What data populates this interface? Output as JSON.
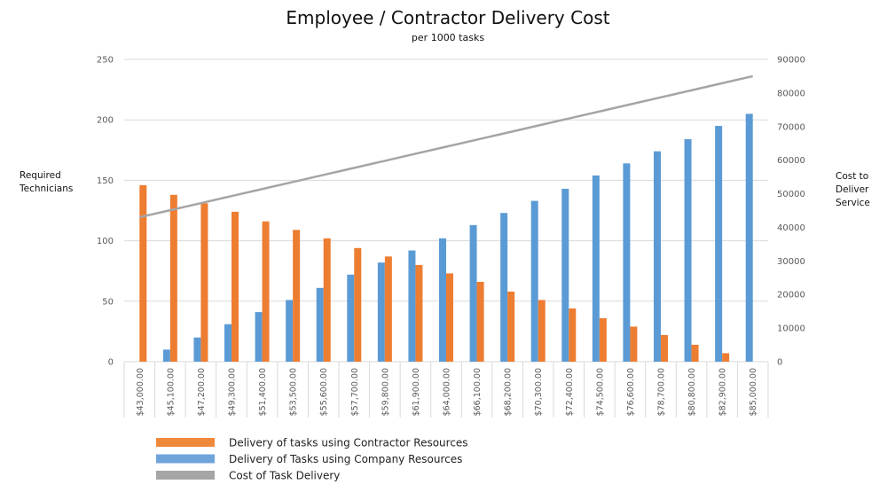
{
  "chart_data": {
    "type": "bar",
    "title": "Employee / Contractor Delivery Cost",
    "subtitle": "per 1000 tasks",
    "ylabel": [
      "Required",
      "Technicians"
    ],
    "y2label": [
      "Cost to",
      "Deliver",
      "Service"
    ],
    "ylim": [
      0,
      250
    ],
    "yticks": [
      0,
      50,
      100,
      150,
      200,
      250
    ],
    "y2lim": [
      0,
      90000
    ],
    "y2ticks": [
      0,
      10000,
      20000,
      30000,
      40000,
      50000,
      60000,
      70000,
      80000,
      90000
    ],
    "grid": true,
    "legend_position": "bottom-left",
    "categories": [
      "$43,000.00",
      "$45,100.00",
      "$47,200.00",
      "$49,300.00",
      "$51,400.00",
      "$53,500.00",
      "$55,600.00",
      "$57,700.00",
      "$59,800.00",
      "$61,900.00",
      "$64,000.00",
      "$66,100.00",
      "$68,200.00",
      "$70,300.00",
      "$72,400.00",
      "$74,500.00",
      "$76,600.00",
      "$78,700.00",
      "$80,800.00",
      "$82,900.00",
      "$85,000.00"
    ],
    "series": [
      {
        "name": "Delivery of Tasks using Company Resources",
        "type": "bar",
        "axis": "left",
        "color": "#5b9bd5",
        "values": [
          0,
          10,
          20,
          31,
          41,
          51,
          61,
          72,
          82,
          92,
          102,
          113,
          123,
          133,
          143,
          154,
          164,
          174,
          184,
          195,
          205
        ]
      },
      {
        "name": "Delivery of tasks using Contractor Resources",
        "type": "bar",
        "axis": "left",
        "color": "#ed7d31",
        "values": [
          146,
          138,
          131,
          124,
          116,
          109,
          102,
          94,
          87,
          80,
          73,
          66,
          58,
          51,
          44,
          36,
          29,
          22,
          14,
          7,
          0
        ]
      },
      {
        "name": "Cost of Task Delivery",
        "type": "line",
        "axis": "right",
        "color": "#a5a5a5",
        "values": [
          43000,
          45100,
          47200,
          49300,
          51400,
          53500,
          55600,
          57700,
          59800,
          61900,
          64000,
          66100,
          68200,
          70300,
          72400,
          74500,
          76600,
          78700,
          80800,
          82900,
          85000
        ]
      }
    ],
    "legend": [
      {
        "label": "Delivery of tasks using Contractor Resources",
        "color": "#f0883c"
      },
      {
        "label": "Delivery of Tasks using Company Resources",
        "color": "#6fa3dc"
      },
      {
        "label": "Cost of Task Delivery",
        "color": "#a5a5a5"
      }
    ]
  }
}
